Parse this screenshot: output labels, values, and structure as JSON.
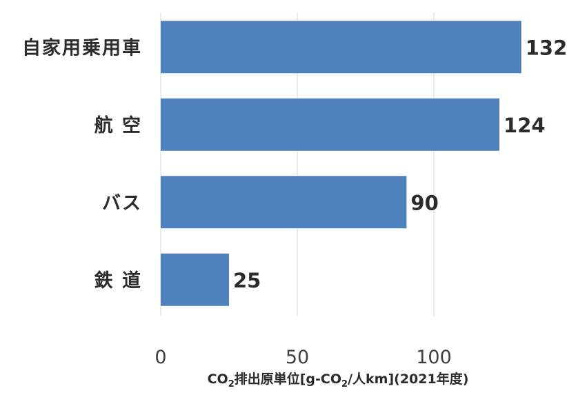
{
  "chart_data": {
    "type": "bar",
    "orientation": "horizontal",
    "categories": [
      "自家用乗用車",
      "航 空",
      "バス",
      "鉄 道"
    ],
    "values": [
      132,
      124,
      90,
      25
    ],
    "xticks": [
      0,
      50,
      100
    ],
    "xlim": [
      0,
      135
    ],
    "xlabel": {
      "prefix": "CO",
      "sub1": "2",
      "mid": "排出原単位[g-CO",
      "sub2": "2",
      "suffix": "/人km](2021年度)"
    },
    "grid": true,
    "bar_color": "#4f81bd",
    "grid_color": "#e6e6e6"
  }
}
